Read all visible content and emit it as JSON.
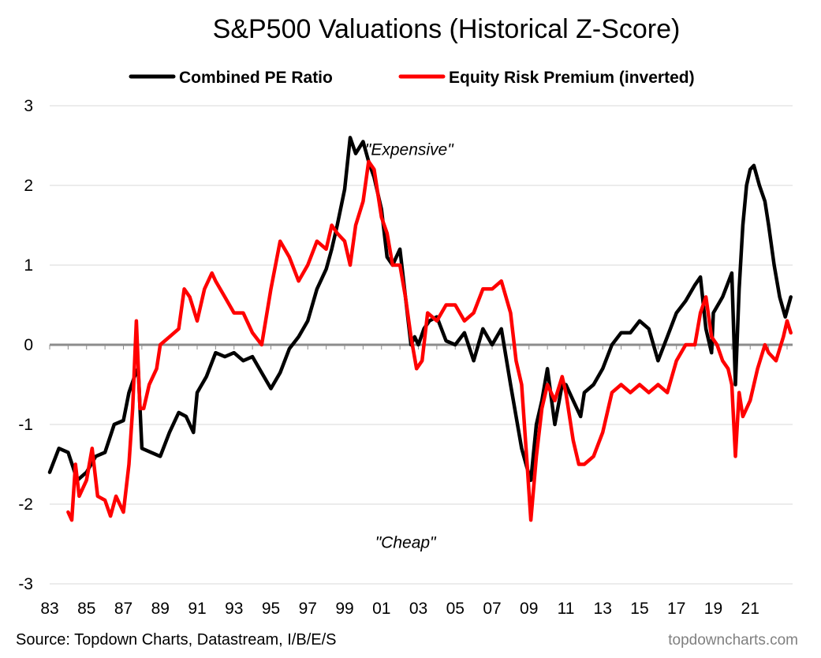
{
  "chart_data": {
    "type": "line",
    "title": "S&P500 Valuations (Historical Z-Score)",
    "xlabel": "",
    "ylabel": "",
    "x_ticks": [
      "83",
      "85",
      "87",
      "89",
      "91",
      "93",
      "95",
      "97",
      "99",
      "01",
      "03",
      "05",
      "07",
      "09",
      "11",
      "13",
      "15",
      "17",
      "19",
      "21"
    ],
    "y_ticks": [
      "3",
      "2",
      "1",
      "0",
      "-1",
      "-2",
      "-3"
    ],
    "xlim": [
      1983,
      2023.3
    ],
    "ylim": [
      -3,
      3
    ],
    "grid": true,
    "legend_position": "top-center",
    "series": [
      {
        "name": "Combined PE Ratio",
        "color": "#000000",
        "x": [
          1983.0,
          1983.5,
          1984.0,
          1984.5,
          1985.0,
          1985.5,
          1986.0,
          1986.5,
          1987.0,
          1987.3,
          1987.6,
          1987.8,
          1988.0,
          1988.5,
          1989.0,
          1989.5,
          1990.0,
          1990.4,
          1990.8,
          1991.0,
          1991.5,
          1992.0,
          1992.5,
          1993.0,
          1993.5,
          1994.0,
          1994.5,
          1995.0,
          1995.5,
          1996.0,
          1996.5,
          1997.0,
          1997.5,
          1998.0,
          1998.3,
          1998.6,
          1999.0,
          1999.3,
          1999.6,
          2000.0,
          2000.3,
          2000.6,
          2001.0,
          2001.3,
          2001.6,
          2002.0,
          2002.3,
          2002.6,
          2002.8,
          2003.0,
          2003.3,
          2003.6,
          2004.0,
          2004.5,
          2005.0,
          2005.5,
          2006.0,
          2006.5,
          2007.0,
          2007.5,
          2008.0,
          2008.3,
          2008.6,
          2008.9,
          2009.1,
          2009.4,
          2009.7,
          2010.0,
          2010.4,
          2010.8,
          2011.0,
          2011.4,
          2011.8,
          2012.0,
          2012.5,
          2013.0,
          2013.5,
          2014.0,
          2014.5,
          2015.0,
          2015.5,
          2016.0,
          2016.5,
          2017.0,
          2017.5,
          2018.0,
          2018.3,
          2018.6,
          2018.9,
          2019.0,
          2019.5,
          2020.0,
          2020.2,
          2020.4,
          2020.6,
          2020.8,
          2021.0,
          2021.2,
          2021.5,
          2021.8,
          2022.0,
          2022.3,
          2022.6,
          2022.9,
          2023.2
        ],
        "values": [
          -1.6,
          -1.3,
          -1.35,
          -1.7,
          -1.6,
          -1.4,
          -1.35,
          -1.0,
          -0.95,
          -0.6,
          -0.4,
          -0.3,
          -1.3,
          -1.35,
          -1.4,
          -1.1,
          -0.85,
          -0.9,
          -1.1,
          -0.6,
          -0.4,
          -0.1,
          -0.15,
          -0.1,
          -0.2,
          -0.15,
          -0.35,
          -0.55,
          -0.35,
          -0.05,
          0.1,
          0.3,
          0.7,
          0.95,
          1.2,
          1.5,
          1.95,
          2.6,
          2.4,
          2.55,
          2.3,
          2.1,
          1.7,
          1.1,
          1.0,
          1.2,
          0.6,
          0.0,
          0.1,
          0.0,
          0.2,
          0.3,
          0.35,
          0.05,
          0.0,
          0.15,
          -0.2,
          0.2,
          0.0,
          0.2,
          -0.5,
          -0.9,
          -1.3,
          -1.55,
          -1.7,
          -1.0,
          -0.7,
          -0.3,
          -1.0,
          -0.5,
          -0.5,
          -0.7,
          -0.9,
          -0.6,
          -0.5,
          -0.3,
          0.0,
          0.15,
          0.15,
          0.3,
          0.2,
          -0.2,
          0.1,
          0.4,
          0.55,
          0.75,
          0.85,
          0.2,
          -0.1,
          0.4,
          0.6,
          0.9,
          -0.5,
          0.7,
          1.5,
          2.0,
          2.2,
          2.25,
          2.0,
          1.8,
          1.5,
          1.0,
          0.6,
          0.35,
          0.6
        ]
      },
      {
        "name": "Equity Risk Premium (inverted)",
        "color": "#ff0000",
        "x": [
          1984.0,
          1984.2,
          1984.4,
          1984.6,
          1985.0,
          1985.3,
          1985.6,
          1986.0,
          1986.3,
          1986.6,
          1987.0,
          1987.3,
          1987.5,
          1987.7,
          1987.9,
          1988.1,
          1988.4,
          1988.8,
          1989.0,
          1989.5,
          1990.0,
          1990.3,
          1990.6,
          1991.0,
          1991.4,
          1991.8,
          1992.0,
          1992.5,
          1993.0,
          1993.5,
          1994.0,
          1994.5,
          1995.0,
          1995.5,
          1996.0,
          1996.5,
          1997.0,
          1997.5,
          1998.0,
          1998.3,
          1998.6,
          1999.0,
          1999.3,
          1999.6,
          2000.0,
          2000.3,
          2000.6,
          2001.0,
          2001.3,
          2001.6,
          2002.0,
          2002.3,
          2002.6,
          2002.9,
          2003.2,
          2003.5,
          2004.0,
          2004.5,
          2005.0,
          2005.5,
          2006.0,
          2006.5,
          2007.0,
          2007.5,
          2008.0,
          2008.3,
          2008.6,
          2008.9,
          2009.1,
          2009.4,
          2009.7,
          2010.0,
          2010.4,
          2010.8,
          2011.0,
          2011.4,
          2011.7,
          2012.0,
          2012.5,
          2013.0,
          2013.5,
          2014.0,
          2014.5,
          2015.0,
          2015.5,
          2016.0,
          2016.5,
          2017.0,
          2017.5,
          2018.0,
          2018.3,
          2018.6,
          2018.9,
          2019.2,
          2019.5,
          2019.8,
          2020.0,
          2020.2,
          2020.4,
          2020.6,
          2021.0,
          2021.4,
          2021.8,
          2022.0,
          2022.4,
          2022.8,
          2023.0,
          2023.2
        ],
        "values": [
          -2.1,
          -2.2,
          -1.5,
          -1.9,
          -1.7,
          -1.3,
          -1.9,
          -1.95,
          -2.15,
          -1.9,
          -2.1,
          -1.5,
          -0.8,
          0.3,
          -0.8,
          -0.8,
          -0.5,
          -0.3,
          0.0,
          0.1,
          0.2,
          0.7,
          0.6,
          0.3,
          0.7,
          0.9,
          0.8,
          0.6,
          0.4,
          0.4,
          0.15,
          0.0,
          0.7,
          1.3,
          1.1,
          0.8,
          1.0,
          1.3,
          1.2,
          1.5,
          1.4,
          1.3,
          1.0,
          1.5,
          1.8,
          2.3,
          2.2,
          1.6,
          1.4,
          1.0,
          1.0,
          0.6,
          0.1,
          -0.3,
          -0.2,
          0.4,
          0.3,
          0.5,
          0.5,
          0.3,
          0.4,
          0.7,
          0.7,
          0.8,
          0.4,
          -0.2,
          -0.5,
          -1.5,
          -2.2,
          -1.4,
          -0.8,
          -0.5,
          -0.7,
          -0.4,
          -0.6,
          -1.2,
          -1.5,
          -1.5,
          -1.4,
          -1.1,
          -0.6,
          -0.5,
          -0.6,
          -0.5,
          -0.6,
          -0.5,
          -0.6,
          -0.2,
          0.0,
          0.0,
          0.4,
          0.6,
          0.1,
          0.0,
          -0.2,
          -0.3,
          -0.5,
          -1.4,
          -0.6,
          -0.9,
          -0.7,
          -0.3,
          0.0,
          -0.1,
          -0.2,
          0.1,
          0.3,
          0.15
        ]
      }
    ],
    "annotations": [
      {
        "text": "\"Expensive\"",
        "x": 2002.5,
        "y": 2.38
      },
      {
        "text": "\"Cheap\"",
        "x": 2002.3,
        "y": -2.55
      }
    ],
    "source": "Source: Topdown Charts, Datastream, I/B/E/S",
    "brand": "topdowncharts.com"
  }
}
